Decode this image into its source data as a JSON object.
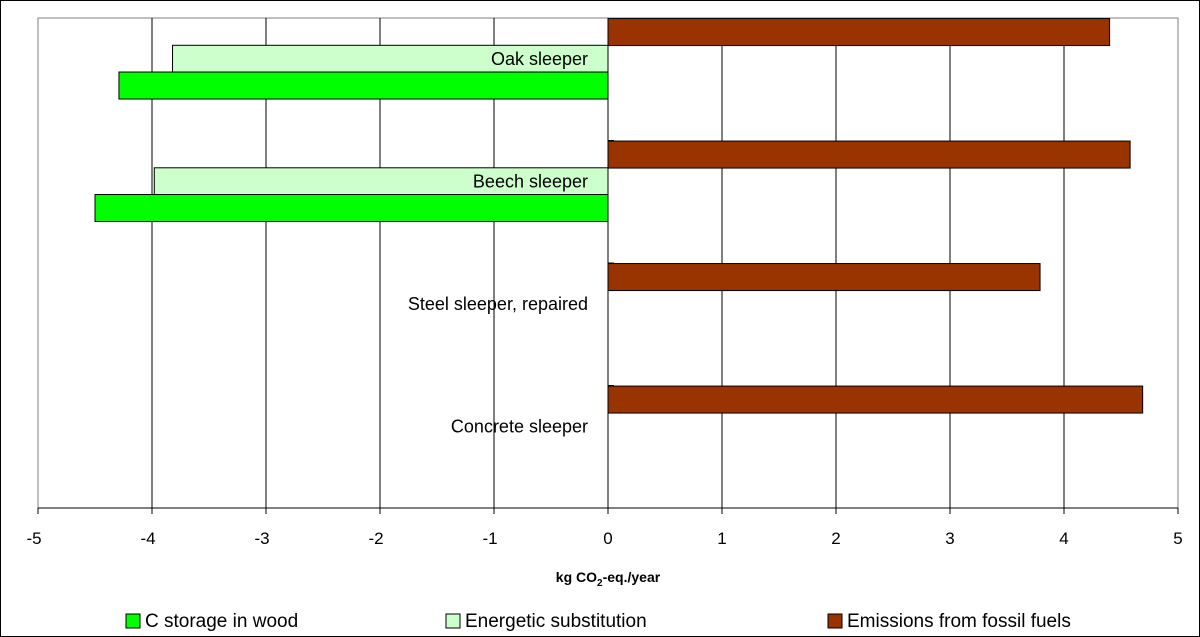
{
  "chart_data": {
    "type": "bar",
    "orientation": "horizontal",
    "categories": [
      "Oak sleeper",
      "Beech sleeper",
      "Steel sleeper, repaired",
      "Concrete sleeper"
    ],
    "series": [
      {
        "name": "Emissions from fossil fuels",
        "color": "#993300",
        "values": [
          4.4,
          4.58,
          3.79,
          4.69
        ]
      },
      {
        "name": "Energetic substitution",
        "color": "#ccffcc",
        "values": [
          -3.82,
          -3.98,
          0,
          0
        ]
      },
      {
        "name": "C storage in wood",
        "color": "#00ff00",
        "values": [
          -4.29,
          -4.5,
          0,
          0
        ]
      }
    ],
    "xlim": [
      -5,
      5
    ],
    "xticks": [
      "-5",
      "-4",
      "-3",
      "-2",
      "-1",
      "0",
      "1",
      "2",
      "3",
      "4",
      "5"
    ],
    "xlabel": "kg CO2-eq./year",
    "xlabel_parts": {
      "pre": "kg CO",
      "sub": "2",
      "post": "-eq./year"
    },
    "legend_order": [
      "C storage in wood",
      "Energetic substitution",
      "Emissions from fossil fuels"
    ],
    "legend_position": "bottom",
    "grid": true
  }
}
